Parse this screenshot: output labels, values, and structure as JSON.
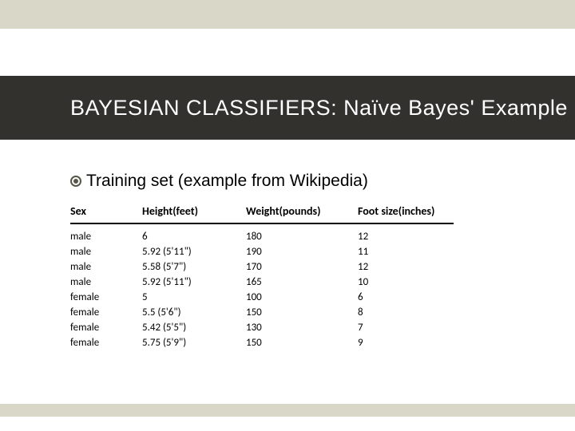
{
  "colors": {
    "decor_bar": "#d9d7c7",
    "title_bg": "#32312e",
    "title_fg": "#ffffff",
    "text": "#000000",
    "bullet": "#58564a"
  },
  "title": "BAYESIAN CLASSIFIERS: Naïve Bayes' Example",
  "bullet_text": "Training set (example from Wikipedia)",
  "table": {
    "columns": [
      "Sex",
      "Height(feet)",
      "Weight(pounds)",
      "Foot size(inches)"
    ],
    "rows": [
      [
        "male",
        "6",
        "180",
        "12"
      ],
      [
        "male",
        "5.92 (5'11\")",
        "190",
        "11"
      ],
      [
        "male",
        "5.58 (5'7\")",
        "170",
        "12"
      ],
      [
        "male",
        "5.92 (5'11\")",
        "165",
        "10"
      ],
      [
        "female",
        "5",
        "100",
        "6"
      ],
      [
        "female",
        "5.5 (5'6\")",
        "150",
        "8"
      ],
      [
        "female",
        "5.42 (5'5\")",
        "130",
        "7"
      ],
      [
        "female",
        "5.75 (5'9\")",
        "150",
        "9"
      ]
    ]
  }
}
